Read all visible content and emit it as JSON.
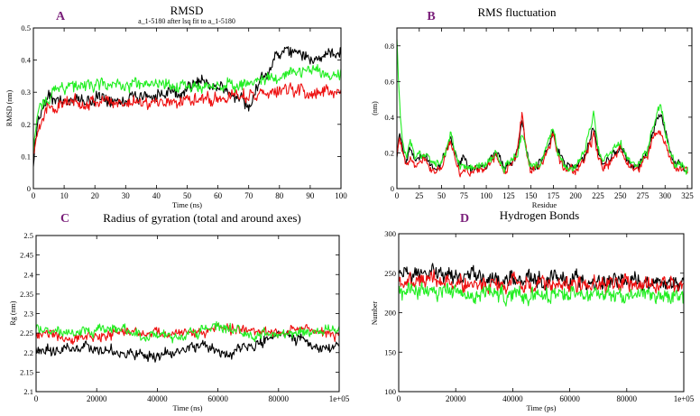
{
  "colors": {
    "black": "#000000",
    "red": "#ee1111",
    "green": "#22ee22",
    "panel_letter": "#7a1f7a"
  },
  "chart_data": [
    {
      "panel": "A",
      "type": "line",
      "title": "RMSD",
      "subtitle": "a_1-5180 after lsq fit to a_1-5180",
      "xlabel": "Time (ns)",
      "ylabel": "RMSD (nm)",
      "xlim": [
        0,
        100
      ],
      "ylim": [
        0,
        0.5
      ],
      "xticks": [
        "0",
        "10",
        "20",
        "30",
        "40",
        "50",
        "60",
        "70",
        "80",
        "90",
        "100"
      ],
      "yticks": [
        "0",
        "0.1",
        "0.2",
        "0.3",
        "0.4",
        "0.5"
      ],
      "noise": 0.012,
      "series": [
        {
          "color": "black",
          "x": [
            0,
            1,
            2,
            3,
            5,
            8,
            12,
            20,
            30,
            40,
            48,
            52,
            55,
            60,
            63,
            65,
            68,
            70,
            73,
            76,
            78,
            80,
            85,
            90,
            95,
            100
          ],
          "y": [
            0.07,
            0.18,
            0.23,
            0.26,
            0.28,
            0.28,
            0.27,
            0.28,
            0.28,
            0.29,
            0.3,
            0.33,
            0.33,
            0.32,
            0.3,
            0.28,
            0.29,
            0.25,
            0.33,
            0.36,
            0.4,
            0.42,
            0.42,
            0.41,
            0.41,
            0.42
          ]
        },
        {
          "color": "red",
          "x": [
            0,
            1,
            2,
            4,
            8,
            15,
            25,
            35,
            45,
            55,
            65,
            75,
            85,
            90,
            95,
            100
          ],
          "y": [
            0.1,
            0.17,
            0.21,
            0.24,
            0.26,
            0.27,
            0.27,
            0.27,
            0.27,
            0.28,
            0.29,
            0.29,
            0.31,
            0.3,
            0.3,
            0.31
          ]
        },
        {
          "color": "green",
          "x": [
            0,
            1,
            2,
            4,
            6,
            10,
            20,
            30,
            40,
            50,
            60,
            70,
            75,
            80,
            85,
            90,
            95,
            100
          ],
          "y": [
            0.12,
            0.2,
            0.25,
            0.28,
            0.3,
            0.32,
            0.32,
            0.32,
            0.32,
            0.32,
            0.32,
            0.33,
            0.34,
            0.35,
            0.36,
            0.37,
            0.36,
            0.36
          ]
        }
      ]
    },
    {
      "panel": "B",
      "type": "line",
      "title": "RMS fluctuation",
      "xlabel": "Residue",
      "ylabel": "(nm)",
      "xlim": [
        0,
        330
      ],
      "ylim": [
        0,
        0.9
      ],
      "xticks": [
        "0",
        "25",
        "50",
        "75",
        "100",
        "125",
        "150",
        "175",
        "200",
        "225",
        "250",
        "275",
        "300",
        "325"
      ],
      "yticks": [
        "0",
        "0.2",
        "0.4",
        "0.6",
        "0.8"
      ],
      "noise": 0.015,
      "series": [
        {
          "color": "black",
          "x": [
            0,
            3,
            6,
            10,
            15,
            20,
            30,
            40,
            50,
            55,
            60,
            65,
            70,
            75,
            80,
            90,
            100,
            110,
            120,
            130,
            135,
            140,
            145,
            150,
            160,
            170,
            175,
            180,
            190,
            200,
            210,
            220,
            225,
            230,
            240,
            250,
            260,
            270,
            280,
            285,
            290,
            295,
            300,
            305,
            310,
            320,
            325
          ],
          "y": [
            0.2,
            0.3,
            0.25,
            0.15,
            0.25,
            0.15,
            0.2,
            0.12,
            0.14,
            0.22,
            0.28,
            0.2,
            0.12,
            0.18,
            0.12,
            0.1,
            0.14,
            0.2,
            0.12,
            0.15,
            0.2,
            0.38,
            0.2,
            0.1,
            0.14,
            0.25,
            0.32,
            0.2,
            0.12,
            0.12,
            0.18,
            0.34,
            0.2,
            0.13,
            0.18,
            0.24,
            0.15,
            0.12,
            0.2,
            0.3,
            0.38,
            0.42,
            0.32,
            0.22,
            0.14,
            0.12,
            0.1
          ]
        },
        {
          "color": "red",
          "x": [
            0,
            3,
            6,
            10,
            15,
            20,
            30,
            40,
            50,
            55,
            60,
            65,
            70,
            80,
            90,
            100,
            110,
            120,
            130,
            135,
            140,
            145,
            150,
            160,
            170,
            175,
            180,
            190,
            200,
            210,
            220,
            225,
            230,
            240,
            250,
            260,
            270,
            280,
            285,
            290,
            295,
            300,
            305,
            310,
            320,
            325
          ],
          "y": [
            0.2,
            0.28,
            0.2,
            0.12,
            0.2,
            0.14,
            0.18,
            0.1,
            0.12,
            0.2,
            0.26,
            0.18,
            0.1,
            0.1,
            0.1,
            0.12,
            0.18,
            0.1,
            0.14,
            0.22,
            0.42,
            0.2,
            0.1,
            0.12,
            0.22,
            0.3,
            0.18,
            0.1,
            0.1,
            0.16,
            0.3,
            0.18,
            0.12,
            0.16,
            0.22,
            0.12,
            0.1,
            0.18,
            0.26,
            0.32,
            0.3,
            0.25,
            0.18,
            0.12,
            0.1,
            0.1
          ]
        },
        {
          "color": "green",
          "x": [
            0,
            2,
            4,
            6,
            8,
            10,
            15,
            20,
            30,
            40,
            50,
            55,
            60,
            65,
            70,
            80,
            90,
            100,
            110,
            120,
            130,
            135,
            140,
            145,
            150,
            160,
            170,
            175,
            180,
            190,
            200,
            210,
            220,
            225,
            230,
            240,
            250,
            260,
            270,
            280,
            285,
            290,
            295,
            300,
            305,
            310,
            320,
            325
          ],
          "y": [
            0.84,
            0.6,
            0.4,
            0.3,
            0.22,
            0.18,
            0.25,
            0.18,
            0.2,
            0.14,
            0.14,
            0.22,
            0.3,
            0.2,
            0.12,
            0.12,
            0.12,
            0.14,
            0.2,
            0.12,
            0.15,
            0.2,
            0.3,
            0.2,
            0.12,
            0.14,
            0.28,
            0.34,
            0.2,
            0.12,
            0.12,
            0.2,
            0.42,
            0.22,
            0.14,
            0.2,
            0.26,
            0.15,
            0.12,
            0.22,
            0.32,
            0.42,
            0.48,
            0.34,
            0.22,
            0.15,
            0.12,
            0.1
          ]
        }
      ]
    },
    {
      "panel": "C",
      "type": "line",
      "title": "Radius of gyration (total and around axes)",
      "xlabel": "Time (ns)",
      "ylabel": "Rg (nm)",
      "xlim": [
        0,
        100000
      ],
      "ylim": [
        2.1,
        2.5
      ],
      "xticks": [
        "0",
        "20000",
        "40000",
        "60000",
        "80000",
        "1e+05"
      ],
      "yticks": [
        "2.1",
        "2.15",
        "2.2",
        "2.25",
        "2.3",
        "2.35",
        "2.4",
        "2.45",
        "2.5"
      ],
      "noise": 0.008,
      "series": [
        {
          "color": "black",
          "x": [
            0,
            5000,
            10000,
            20000,
            30000,
            40000,
            45000,
            50000,
            55000,
            60000,
            65000,
            70000,
            75000,
            80000,
            85000,
            90000,
            95000,
            100000
          ],
          "y": [
            2.21,
            2.2,
            2.21,
            2.21,
            2.2,
            2.19,
            2.2,
            2.21,
            2.22,
            2.2,
            2.2,
            2.22,
            2.23,
            2.25,
            2.24,
            2.22,
            2.21,
            2.22
          ]
        },
        {
          "color": "red",
          "x": [
            0,
            5000,
            10000,
            20000,
            30000,
            40000,
            45000,
            50000,
            55000,
            60000,
            65000,
            70000,
            75000,
            80000,
            85000,
            90000,
            95000,
            100000
          ],
          "y": [
            2.25,
            2.24,
            2.24,
            2.24,
            2.25,
            2.25,
            2.25,
            2.25,
            2.25,
            2.26,
            2.26,
            2.26,
            2.25,
            2.25,
            2.26,
            2.26,
            2.25,
            2.25
          ]
        },
        {
          "color": "green",
          "x": [
            0,
            5000,
            10000,
            20000,
            30000,
            35000,
            40000,
            45000,
            50000,
            55000,
            60000,
            65000,
            70000,
            75000,
            80000,
            85000,
            90000,
            95000,
            100000
          ],
          "y": [
            2.26,
            2.26,
            2.25,
            2.26,
            2.26,
            2.24,
            2.25,
            2.24,
            2.25,
            2.26,
            2.27,
            2.26,
            2.25,
            2.25,
            2.25,
            2.25,
            2.25,
            2.26,
            2.26
          ]
        }
      ]
    },
    {
      "panel": "D",
      "type": "line",
      "title": "Hydrogen Bonds",
      "xlabel": "Time (ps)",
      "ylabel": "Number",
      "xlim": [
        0,
        100000
      ],
      "ylim": [
        100,
        300
      ],
      "xticks": [
        "0",
        "20000",
        "40000",
        "60000",
        "80000",
        "1e+05"
      ],
      "yticks": [
        "100",
        "150",
        "200",
        "250",
        "300"
      ],
      "noise": 6,
      "series": [
        {
          "color": "black",
          "x": [
            0,
            20000,
            40000,
            60000,
            80000,
            100000
          ],
          "y": [
            250,
            246,
            244,
            241,
            240,
            238
          ]
        },
        {
          "color": "red",
          "x": [
            0,
            20000,
            40000,
            60000,
            80000,
            100000
          ],
          "y": [
            240,
            238,
            237,
            236,
            237,
            236
          ]
        },
        {
          "color": "green",
          "x": [
            0,
            20000,
            40000,
            60000,
            80000,
            100000
          ],
          "y": [
            225,
            226,
            224,
            225,
            222,
            222
          ]
        }
      ]
    }
  ]
}
